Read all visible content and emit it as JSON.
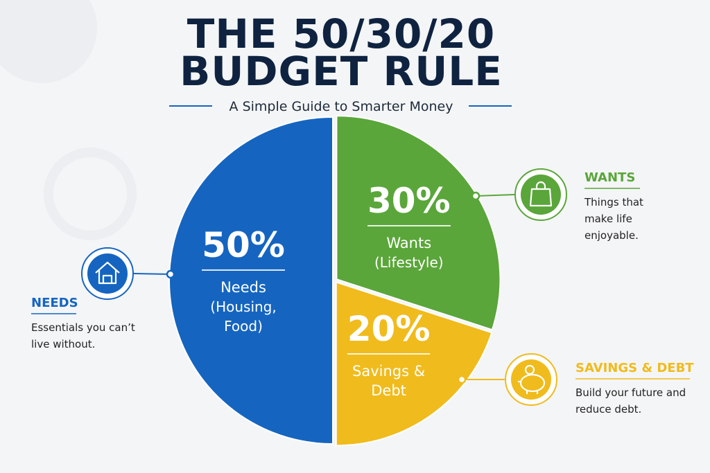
{
  "chart_data": {
    "type": "pie",
    "title": "THE 50/30/20 BUDGET RULE",
    "subtitle": "A Simple Guide to Smarter Money",
    "categories": [
      "Needs",
      "Wants",
      "Savings & Debt"
    ],
    "details": [
      "(Housing, Food)",
      "(Lifestyle)",
      null
    ],
    "values": [
      50,
      30,
      20
    ],
    "value_labels": [
      "50%",
      "30%",
      "20%"
    ],
    "colors": [
      "#1565c0",
      "#5aa63a",
      "#f0bb1c"
    ],
    "callouts": [
      {
        "title": "NEEDS",
        "text": "Essentials you can’t live without."
      },
      {
        "title": "WANTS",
        "text": "Things that make life enjoyable."
      },
      {
        "title": "SAVINGS & DEBT",
        "text": "Build your future and reduce debt."
      }
    ]
  }
}
